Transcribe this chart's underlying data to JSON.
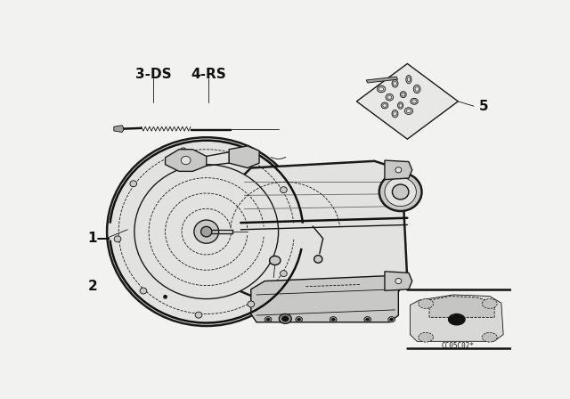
{
  "bg_color": "#f2f2f0",
  "label_3ds": "3-DS",
  "label_4rs": "4-RS",
  "label_1": "1—",
  "label_2": "2",
  "label_5": "5",
  "code_text": "CC05C02*",
  "line_color": "#1a1a1a",
  "dark_color": "#111111",
  "mid_gray": "#666666",
  "light_gray": "#aaaaaa",
  "fill_light": "#e2e2e0",
  "fill_mid": "#c8c8c6",
  "fill_dark": "#a0a0a0"
}
